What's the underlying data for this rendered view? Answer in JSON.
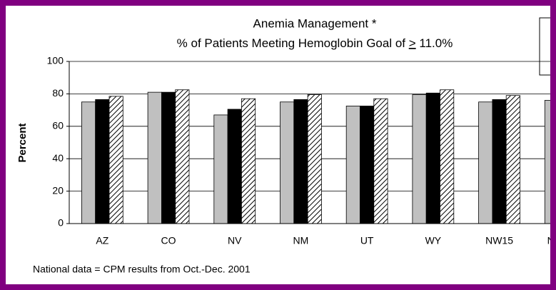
{
  "chart_data": {
    "type": "bar",
    "title": "Anemia Management *",
    "subtitle": [
      "% of Patients Meeting Hemoglobin Goal of ",
      ">",
      " 11.0%"
    ],
    "ylabel": "Percent",
    "footnote": "National data = CPM results from Oct.-Dec. 2001",
    "categories": [
      "AZ",
      "CO",
      "NV",
      "NM",
      "UT",
      "WY",
      "NW15",
      "National"
    ],
    "series": [
      {
        "color": "#c0c0c0",
        "values": [
          75,
          81,
          67,
          75,
          72.5,
          79.5,
          75,
          76
        ]
      },
      {
        "color": "#000000",
        "values": [
          76.5,
          81,
          70.5,
          76.5,
          72.5,
          80.5,
          76.5,
          null
        ]
      },
      {
        "color": "#ffffff",
        "pattern": "hatch",
        "values": [
          78.5,
          82.5,
          77,
          79.5,
          77,
          82.5,
          79,
          null
        ]
      }
    ],
    "ylim": [
      0,
      100
    ],
    "yticks": [
      0,
      20,
      40,
      60,
      80,
      100
    ],
    "grid": true
  }
}
